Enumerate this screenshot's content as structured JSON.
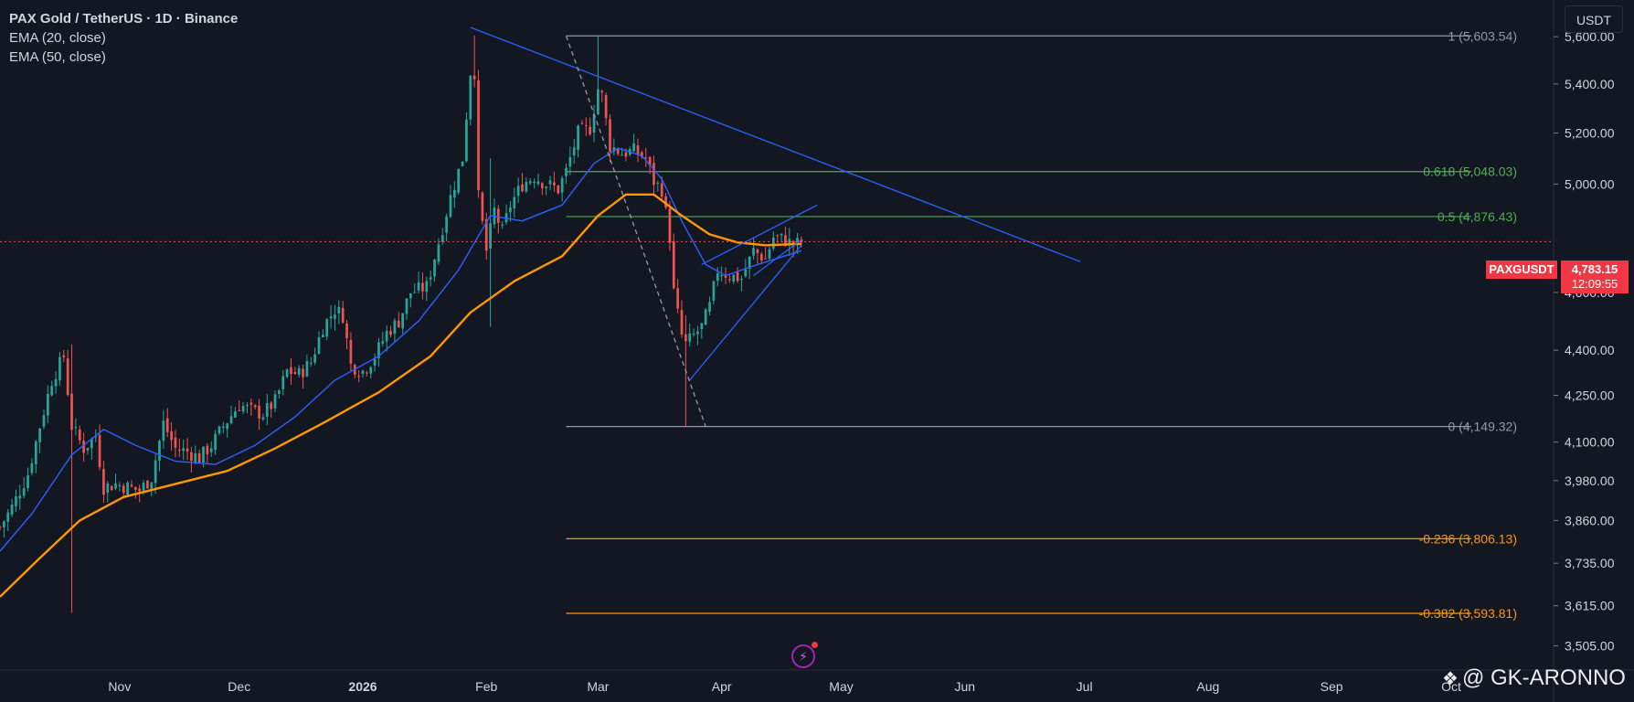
{
  "legend": {
    "title": "PAX Gold / TetherUS · 1D · Binance",
    "ema20": "EMA (20, close)",
    "ema50": "EMA (50, close)"
  },
  "currency_button": "USDT",
  "current_price": {
    "symbol": "PAXGUSDT",
    "price": "4,783.15",
    "countdown": "12:09:55",
    "color": "#f23645"
  },
  "watermark": "@ GK-ARONNO",
  "colors": {
    "background": "#131722",
    "up": "#26a69a",
    "down": "#ef5350",
    "ema20": "#2962ff",
    "ema50": "#ff9800",
    "trendline": "#2962ff",
    "fib_neutral": "#9598a1",
    "fib_green": "#4caf50",
    "fib_orange": "#ff9800"
  },
  "chart_data": {
    "type": "candlestick",
    "symbol": "PAXGUSDT",
    "timeframe": "1D",
    "y_scale": "log",
    "ylim": [
      3460,
      5720
    ],
    "y_ticks": [
      3505,
      3615,
      3735,
      3860,
      3980,
      4100,
      4250,
      4400,
      4600,
      5000,
      5200,
      5400,
      5600
    ],
    "y_tick_labels": [
      "3,505.00",
      "3,615.00",
      "3,735.00",
      "3,860.00",
      "3,980.00",
      "4,100.00",
      "4,250.00",
      "4,400.00",
      "4,600.00",
      "5,000.00",
      "5,200.00",
      "5,400.00",
      "5,600.00"
    ],
    "x_ticks": [
      {
        "label": "Nov",
        "date": "2025-11-01"
      },
      {
        "label": "Dec",
        "date": "2025-12-01"
      },
      {
        "label": "2026",
        "date": "2026-01-01",
        "bold": true
      },
      {
        "label": "Feb",
        "date": "2026-02-01"
      },
      {
        "label": "Mar",
        "date": "2026-03-01"
      },
      {
        "label": "Apr",
        "date": "2026-04-01"
      },
      {
        "label": "May",
        "date": "2026-05-01"
      },
      {
        "label": "Jun",
        "date": "2026-06-01"
      },
      {
        "label": "Jul",
        "date": "2026-07-01"
      },
      {
        "label": "Aug",
        "date": "2026-08-01"
      },
      {
        "label": "Sep",
        "date": "2026-09-01"
      },
      {
        "label": "Oct",
        "date": "2026-10-01"
      }
    ],
    "x_range": [
      "2025-10-02",
      "2026-10-01"
    ],
    "price_path": [
      [
        "2025-10-02",
        3840
      ],
      [
        "2025-10-05",
        3900
      ],
      [
        "2025-10-09",
        4000
      ],
      [
        "2025-10-12",
        4150
      ],
      [
        "2025-10-15",
        4300
      ],
      [
        "2025-10-18",
        4380
      ],
      [
        "2025-10-20",
        4150
      ],
      [
        "2025-10-23",
        4080
      ],
      [
        "2025-10-26",
        4120
      ],
      [
        "2025-10-28",
        3960
      ],
      [
        "2025-10-31",
        3970
      ],
      [
        "2025-11-03",
        3960
      ],
      [
        "2025-11-06",
        3950
      ],
      [
        "2025-11-09",
        3990
      ],
      [
        "2025-11-12",
        4160
      ],
      [
        "2025-11-15",
        4080
      ],
      [
        "2025-11-18",
        4070
      ],
      [
        "2025-11-21",
        4050
      ],
      [
        "2025-11-24",
        4090
      ],
      [
        "2025-11-27",
        4150
      ],
      [
        "2025-12-01",
        4220
      ],
      [
        "2025-12-04",
        4200
      ],
      [
        "2025-12-07",
        4190
      ],
      [
        "2025-12-10",
        4230
      ],
      [
        "2025-12-13",
        4330
      ],
      [
        "2025-12-16",
        4320
      ],
      [
        "2025-12-19",
        4360
      ],
      [
        "2025-12-22",
        4480
      ],
      [
        "2025-12-25",
        4540
      ],
      [
        "2025-12-27",
        4520
      ],
      [
        "2025-12-29",
        4350
      ],
      [
        "2026-01-01",
        4330
      ],
      [
        "2026-01-04",
        4380
      ],
      [
        "2026-01-07",
        4460
      ],
      [
        "2026-01-10",
        4500
      ],
      [
        "2026-01-13",
        4600
      ],
      [
        "2026-01-17",
        4620
      ],
      [
        "2026-01-20",
        4780
      ],
      [
        "2026-01-23",
        4950
      ],
      [
        "2026-01-26",
        5100
      ],
      [
        "2026-01-28",
        5450
      ],
      [
        "2026-01-29",
        5450
      ],
      [
        "2026-01-30",
        4950
      ],
      [
        "2026-02-01",
        4750
      ],
      [
        "2026-02-03",
        4900
      ],
      [
        "2026-02-05",
        4820
      ],
      [
        "2026-02-07",
        4920
      ],
      [
        "2026-02-10",
        5000
      ],
      [
        "2026-02-13",
        5030
      ],
      [
        "2026-02-16",
        5000
      ],
      [
        "2026-02-19",
        4980
      ],
      [
        "2026-02-21",
        5050
      ],
      [
        "2026-02-24",
        5200
      ],
      [
        "2026-02-27",
        5220
      ],
      [
        "2026-03-01",
        5380
      ],
      [
        "2026-03-02",
        5350
      ],
      [
        "2026-03-04",
        5150
      ],
      [
        "2026-03-07",
        5120
      ],
      [
        "2026-03-10",
        5130
      ],
      [
        "2026-03-13",
        5100
      ],
      [
        "2026-03-15",
        5010
      ],
      [
        "2026-03-17",
        4980
      ],
      [
        "2026-03-19",
        4800
      ],
      [
        "2026-03-20",
        4600
      ],
      [
        "2026-03-22",
        4450
      ],
      [
        "2026-03-23",
        4420
      ],
      [
        "2026-03-25",
        4450
      ],
      [
        "2026-03-27",
        4480
      ],
      [
        "2026-03-29",
        4550
      ],
      [
        "2026-03-31",
        4680
      ],
      [
        "2026-04-03",
        4660
      ],
      [
        "2026-04-06",
        4650
      ],
      [
        "2026-04-09",
        4750
      ],
      [
        "2026-04-12",
        4720
      ],
      [
        "2026-04-14",
        4800
      ],
      [
        "2026-04-17",
        4790
      ],
      [
        "2026-04-19",
        4770
      ],
      [
        "2026-04-21",
        4783
      ]
    ],
    "wicks": [
      {
        "date": "2025-10-20",
        "low": 3595,
        "high": 4420
      },
      {
        "date": "2026-01-29",
        "low": 5400,
        "high": 5605
      },
      {
        "date": "2026-02-02",
        "low": 4480,
        "high": 5100
      },
      {
        "date": "2026-03-01",
        "low": 5300,
        "high": 5600
      },
      {
        "date": "2026-03-23",
        "low": 4150,
        "high": 4520
      }
    ],
    "ema20": [
      [
        "2025-10-02",
        3770
      ],
      [
        "2025-10-10",
        3880
      ],
      [
        "2025-10-20",
        4060
      ],
      [
        "2025-10-28",
        4140
      ],
      [
        "2025-11-05",
        4090
      ],
      [
        "2025-11-15",
        4040
      ],
      [
        "2025-11-25",
        4030
      ],
      [
        "2025-12-05",
        4090
      ],
      [
        "2025-12-15",
        4180
      ],
      [
        "2025-12-25",
        4300
      ],
      [
        "2026-01-05",
        4380
      ],
      [
        "2026-01-15",
        4500
      ],
      [
        "2026-01-25",
        4680
      ],
      [
        "2026-02-02",
        4880
      ],
      [
        "2026-02-10",
        4860
      ],
      [
        "2026-02-20",
        4920
      ],
      [
        "2026-02-28",
        5080
      ],
      [
        "2026-03-06",
        5140
      ],
      [
        "2026-03-12",
        5110
      ],
      [
        "2026-03-17",
        5020
      ],
      [
        "2026-03-22",
        4860
      ],
      [
        "2026-03-28",
        4700
      ],
      [
        "2026-04-02",
        4660
      ],
      [
        "2026-04-10",
        4700
      ],
      [
        "2026-04-21",
        4750
      ]
    ],
    "ema50": [
      [
        "2025-10-02",
        3640
      ],
      [
        "2025-10-12",
        3750
      ],
      [
        "2025-10-22",
        3860
      ],
      [
        "2025-11-02",
        3930
      ],
      [
        "2025-11-15",
        3970
      ],
      [
        "2025-11-28",
        4010
      ],
      [
        "2025-12-10",
        4080
      ],
      [
        "2025-12-22",
        4160
      ],
      [
        "2026-01-05",
        4260
      ],
      [
        "2026-01-18",
        4380
      ],
      [
        "2026-01-28",
        4530
      ],
      [
        "2026-02-08",
        4640
      ],
      [
        "2026-02-20",
        4730
      ],
      [
        "2026-03-01",
        4880
      ],
      [
        "2026-03-08",
        4960
      ],
      [
        "2026-03-15",
        4960
      ],
      [
        "2026-03-22",
        4880
      ],
      [
        "2026-03-29",
        4810
      ],
      [
        "2026-04-05",
        4780
      ],
      [
        "2026-04-12",
        4770
      ],
      [
        "2026-04-21",
        4775
      ]
    ],
    "trendlines": [
      {
        "name": "descending-resistance",
        "from": [
          "2026-01-28",
          5640
        ],
        "to": [
          "2026-06-30",
          4710
        ],
        "style": "solid"
      },
      {
        "name": "wedge-upper",
        "from": [
          "2026-03-27",
          4700
        ],
        "to": [
          "2026-04-25",
          4920
        ],
        "style": "solid"
      },
      {
        "name": "wedge-lower",
        "from": [
          "2026-03-24",
          4300
        ],
        "to": [
          "2026-04-21",
          4770
        ],
        "style": "solid"
      },
      {
        "name": "wedge-inner",
        "from": [
          "2026-04-09",
          4660
        ],
        "to": [
          "2026-04-21",
          4790
        ],
        "style": "solid"
      },
      {
        "name": "fib-anchor-diagonal",
        "from": [
          "2026-02-21",
          5603.54
        ],
        "to": [
          "2026-03-28",
          4149.32
        ],
        "style": "dashed"
      }
    ],
    "fib_start_date": "2026-02-21",
    "fib_levels": [
      {
        "label": "1 (5,603.54)",
        "value": 5603.54,
        "color": "#9598a1"
      },
      {
        "label": "0.618 (5,048.03)",
        "value": 5048.03,
        "color": "#4caf50"
      },
      {
        "label": "0.5 (4,876.43)",
        "value": 4876.43,
        "color": "#4caf50"
      },
      {
        "label": "0 (4,149.32)",
        "value": 4149.32,
        "color": "#9598a1"
      },
      {
        "label": "-0.236 (3,806.13)",
        "value": 3806.13,
        "color": "#ff9800"
      },
      {
        "label": "-0.382 (3,593.81)",
        "value": 3593.81,
        "color": "#ff9800"
      }
    ],
    "last_price": 4783.15
  }
}
